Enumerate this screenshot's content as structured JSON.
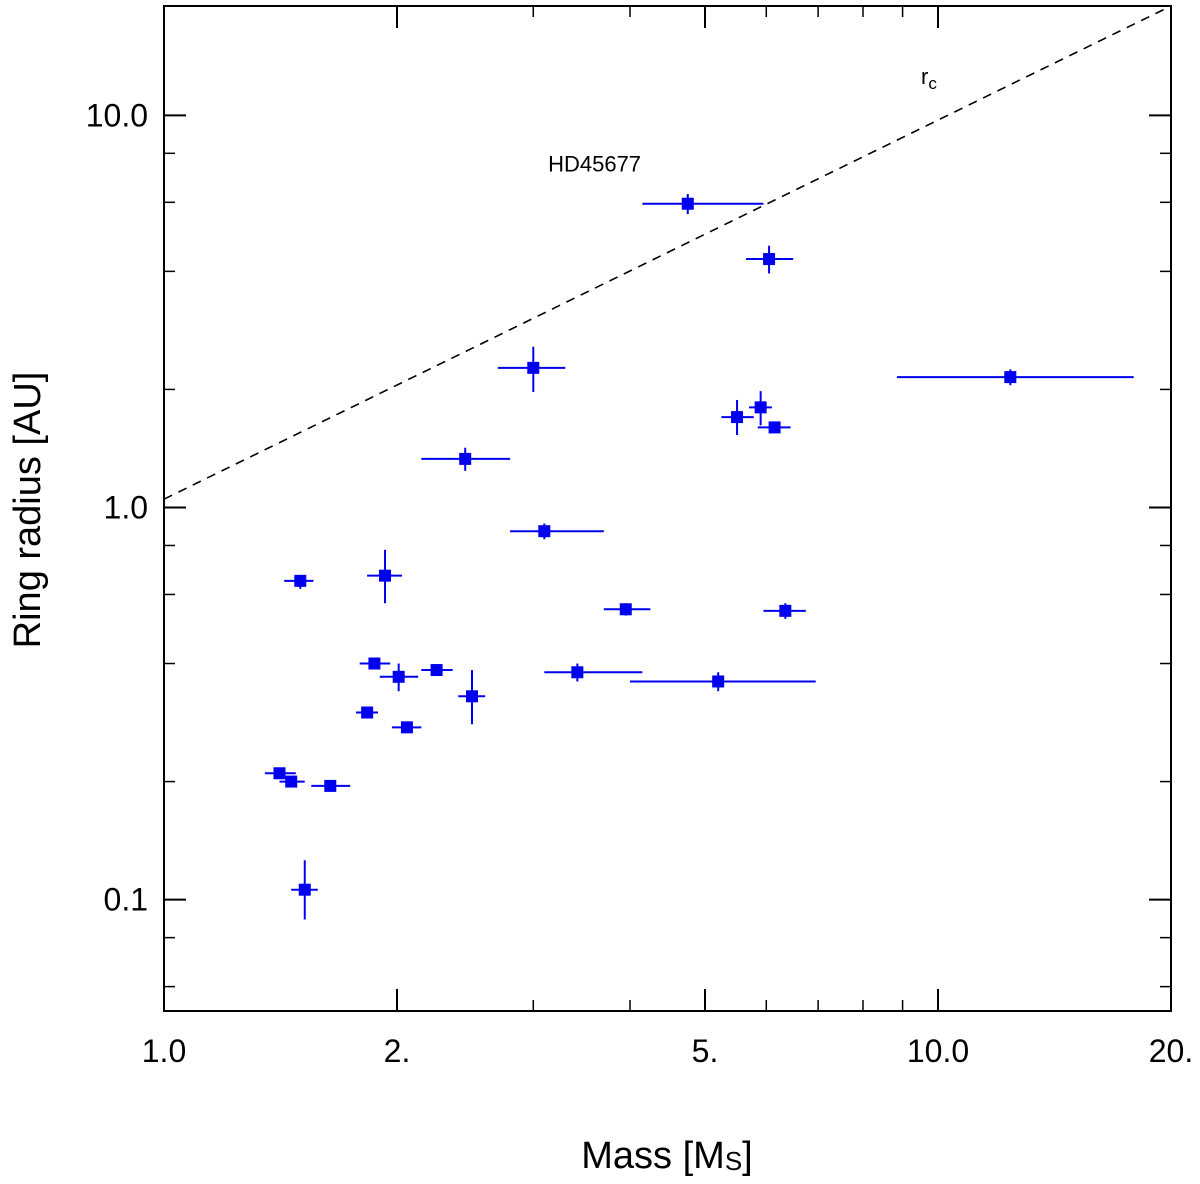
{
  "chart_data": {
    "type": "scatter",
    "x_scale": "log",
    "y_scale": "log",
    "xlim": [
      1.0,
      20.0
    ],
    "ylim": [
      0.052,
      19.0
    ],
    "xlabel": {
      "main": "Mass [M",
      "sub": "S",
      "end": "]"
    },
    "ylabel": "Ring radius [AU]",
    "x_ticks": [
      {
        "value": 1.0,
        "label": "1.0"
      },
      {
        "value": 2.0,
        "label": "2."
      },
      {
        "value": 5.0,
        "label": "5."
      },
      {
        "value": 10.0,
        "label": "10.0"
      },
      {
        "value": 20.0,
        "label": "20."
      }
    ],
    "y_ticks": [
      {
        "value": 0.1,
        "label": "0.1"
      },
      {
        "value": 1.0,
        "label": "1.0"
      },
      {
        "value": 10.0,
        "label": "10.0"
      }
    ],
    "marker_color": "#0000ee",
    "points": [
      {
        "x": 4.75,
        "y": 5.95,
        "xerr": [
          4.15,
          5.95
        ],
        "yerr": [
          5.6,
          6.3
        ]
      },
      {
        "x": 6.05,
        "y": 4.3,
        "xerr": [
          5.65,
          6.5
        ],
        "yerr": [
          3.95,
          4.65
        ]
      },
      {
        "x": 12.4,
        "y": 2.15,
        "xerr": [
          8.85,
          17.9
        ],
        "yerr": [
          2.05,
          2.25
        ]
      },
      {
        "x": 3.0,
        "y": 2.27,
        "xerr": [
          2.7,
          3.3
        ],
        "yerr": [
          1.97,
          2.57
        ]
      },
      {
        "x": 5.9,
        "y": 1.8,
        "xerr": [
          5.7,
          6.1
        ],
        "yerr": [
          1.62,
          1.98
        ]
      },
      {
        "x": 5.5,
        "y": 1.7,
        "xerr": [
          5.25,
          5.78
        ],
        "yerr": [
          1.53,
          1.88
        ]
      },
      {
        "x": 6.15,
        "y": 1.6,
        "xerr": [
          5.85,
          6.45
        ],
        "yerr": [
          1.55,
          1.65
        ]
      },
      {
        "x": 2.45,
        "y": 1.33,
        "xerr": [
          2.15,
          2.8
        ],
        "yerr": [
          1.24,
          1.42
        ]
      },
      {
        "x": 3.1,
        "y": 0.87,
        "xerr": [
          2.8,
          3.7
        ],
        "yerr": [
          0.83,
          0.91
        ]
      },
      {
        "x": 1.5,
        "y": 0.65,
        "xerr": [
          1.43,
          1.56
        ],
        "yerr": [
          0.62,
          0.67
        ]
      },
      {
        "x": 1.93,
        "y": 0.67,
        "xerr": [
          1.83,
          2.03
        ],
        "yerr": [
          0.57,
          0.78
        ]
      },
      {
        "x": 3.95,
        "y": 0.55,
        "xerr": [
          3.7,
          4.25
        ],
        "yerr": [
          0.53,
          0.57
        ]
      },
      {
        "x": 6.35,
        "y": 0.545,
        "xerr": [
          5.95,
          6.75
        ],
        "yerr": [
          0.52,
          0.57
        ]
      },
      {
        "x": 1.87,
        "y": 0.4,
        "xerr": [
          1.79,
          1.96
        ],
        "yerr": [
          0.39,
          0.41
        ]
      },
      {
        "x": 2.01,
        "y": 0.37,
        "xerr": [
          1.9,
          2.13
        ],
        "yerr": [
          0.34,
          0.4
        ]
      },
      {
        "x": 2.25,
        "y": 0.385,
        "xerr": [
          2.15,
          2.36
        ],
        "yerr": [
          0.375,
          0.395
        ]
      },
      {
        "x": 2.5,
        "y": 0.33,
        "xerr": [
          2.4,
          2.6
        ],
        "yerr": [
          0.28,
          0.385
        ]
      },
      {
        "x": 3.42,
        "y": 0.38,
        "xerr": [
          3.1,
          4.15
        ],
        "yerr": [
          0.36,
          0.4
        ]
      },
      {
        "x": 5.2,
        "y": 0.36,
        "xerr": [
          4.0,
          6.95
        ],
        "yerr": [
          0.34,
          0.38
        ]
      },
      {
        "x": 1.83,
        "y": 0.3,
        "xerr": [
          1.77,
          1.89
        ],
        "yerr": [
          0.29,
          0.31
        ]
      },
      {
        "x": 2.06,
        "y": 0.275,
        "xerr": [
          1.97,
          2.15
        ],
        "yerr": [
          0.27,
          0.28
        ]
      },
      {
        "x": 1.41,
        "y": 0.21,
        "xerr": [
          1.35,
          1.48
        ],
        "yerr": [
          0.205,
          0.215
        ]
      },
      {
        "x": 1.46,
        "y": 0.2,
        "xerr": [
          1.41,
          1.52
        ],
        "yerr": [
          0.195,
          0.205
        ]
      },
      {
        "x": 1.64,
        "y": 0.195,
        "xerr": [
          1.55,
          1.74
        ],
        "yerr": [
          0.19,
          0.2
        ]
      },
      {
        "x": 1.52,
        "y": 0.106,
        "xerr": [
          1.46,
          1.58
        ],
        "yerr": [
          0.089,
          0.126
        ]
      }
    ],
    "reference_line": {
      "name": "r",
      "name_sub": "c",
      "style": "dashed",
      "x": [
        1.0,
        20.0
      ],
      "y": [
        1.05,
        19.0
      ]
    },
    "annotations": [
      {
        "text": "HD45677",
        "x": 3.6,
        "y": 7.2
      }
    ]
  }
}
